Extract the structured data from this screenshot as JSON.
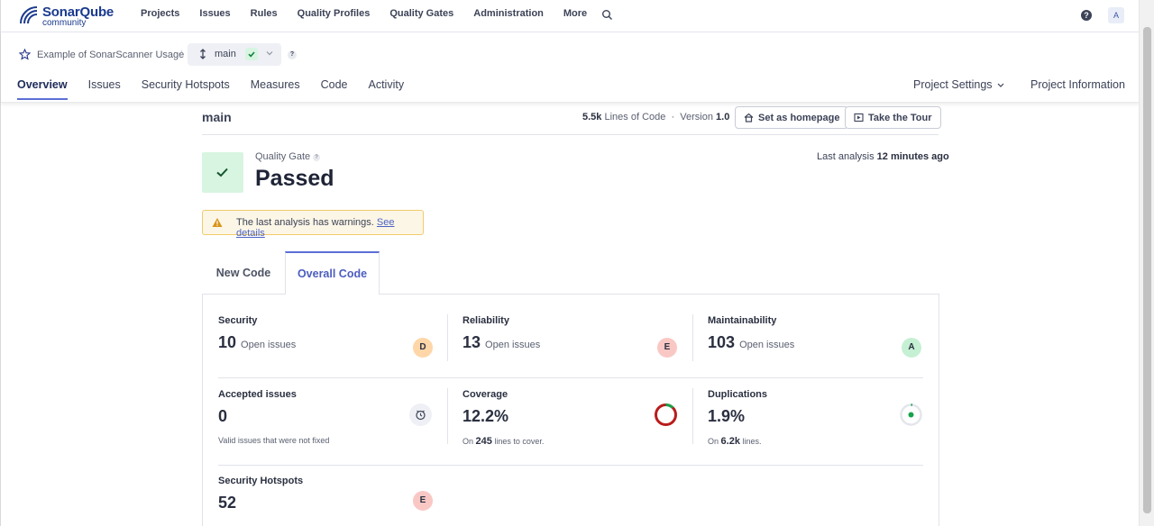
{
  "topnav": {
    "logo_name": "SonarQube",
    "logo_sub": "community",
    "menu": [
      "Projects",
      "Issues",
      "Rules",
      "Quality Profiles",
      "Quality Gates",
      "Administration",
      "More"
    ],
    "help_label": "?",
    "avatar_label": "A"
  },
  "project": {
    "name": "Example of SonarScanner Usage",
    "separator": "/",
    "branch": "main",
    "branch_help": "?",
    "tabs": [
      "Overview",
      "Issues",
      "Security Hotspots",
      "Measures",
      "Code",
      "Activity"
    ],
    "active_tab": "Overview",
    "settings_label": "Project Settings",
    "info_label": "Project Information"
  },
  "header": {
    "branch_title": "main",
    "loc_value": "5.5k",
    "loc_label": "Lines of Code",
    "version_label": "Version",
    "version_value": "1.0",
    "homepage_button": "Set as homepage",
    "tour_button": "Take the Tour"
  },
  "quality_gate": {
    "label": "Quality Gate",
    "help": "?",
    "status": "Passed",
    "last_analysis_label": "Last analysis",
    "last_analysis_value": "12 minutes ago"
  },
  "warning": {
    "text": "The last analysis has warnings.",
    "link": "See details"
  },
  "code_tabs": {
    "new": "New Code",
    "overall": "Overall Code"
  },
  "measures": {
    "security": {
      "title": "Security",
      "value": "10",
      "unit": "Open issues",
      "rating": "D"
    },
    "reliability": {
      "title": "Reliability",
      "value": "13",
      "unit": "Open issues",
      "rating": "E"
    },
    "maintainability": {
      "title": "Maintainability",
      "value": "103",
      "unit": "Open issues",
      "rating": "A"
    },
    "accepted": {
      "title": "Accepted issues",
      "value": "0",
      "sub": "Valid issues that were not fixed"
    },
    "coverage": {
      "title": "Coverage",
      "value": "12.2%",
      "sub_pre": "On",
      "sub_num": "245",
      "sub_post": "lines to cover.",
      "fraction": 0.122
    },
    "duplications": {
      "title": "Duplications",
      "value": "1.9%",
      "sub_pre": "On",
      "sub_num": "6.2k",
      "sub_post": "lines.",
      "fraction": 0.019
    },
    "hotspots": {
      "title": "Security Hotspots",
      "value": "52",
      "rating": "E"
    }
  },
  "colors": {
    "accent": "#5d6ed6",
    "rating_D": "#fed6a7",
    "rating_E": "#f9c8c5",
    "rating_A": "#c6f0d3",
    "passed_bg": "#d7f5e1",
    "coverage_ring": "#b91c1c",
    "ok_green": "#16a34a"
  }
}
